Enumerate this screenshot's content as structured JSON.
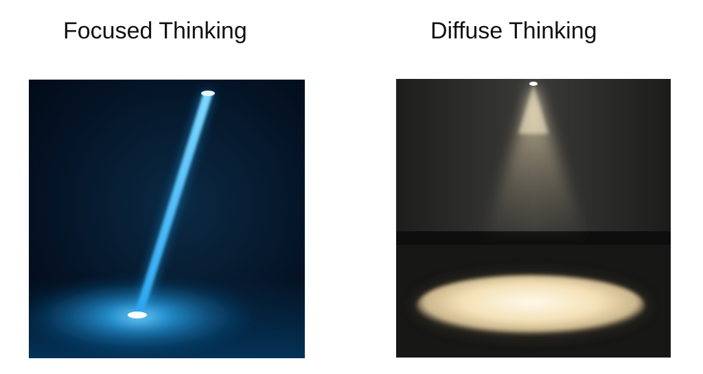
{
  "panels": [
    {
      "title": "Focused Thinking",
      "scene": "narrow-spotlight-beam",
      "colors": {
        "background": "#020c18",
        "beam": "#39b6ff",
        "glow": "#0a5f9c"
      }
    },
    {
      "title": "Diffuse Thinking",
      "scene": "wide-spotlight-cone",
      "colors": {
        "wall": "#2f2f2d",
        "floor": "#141414",
        "light": "#f5e2b8"
      }
    }
  ]
}
